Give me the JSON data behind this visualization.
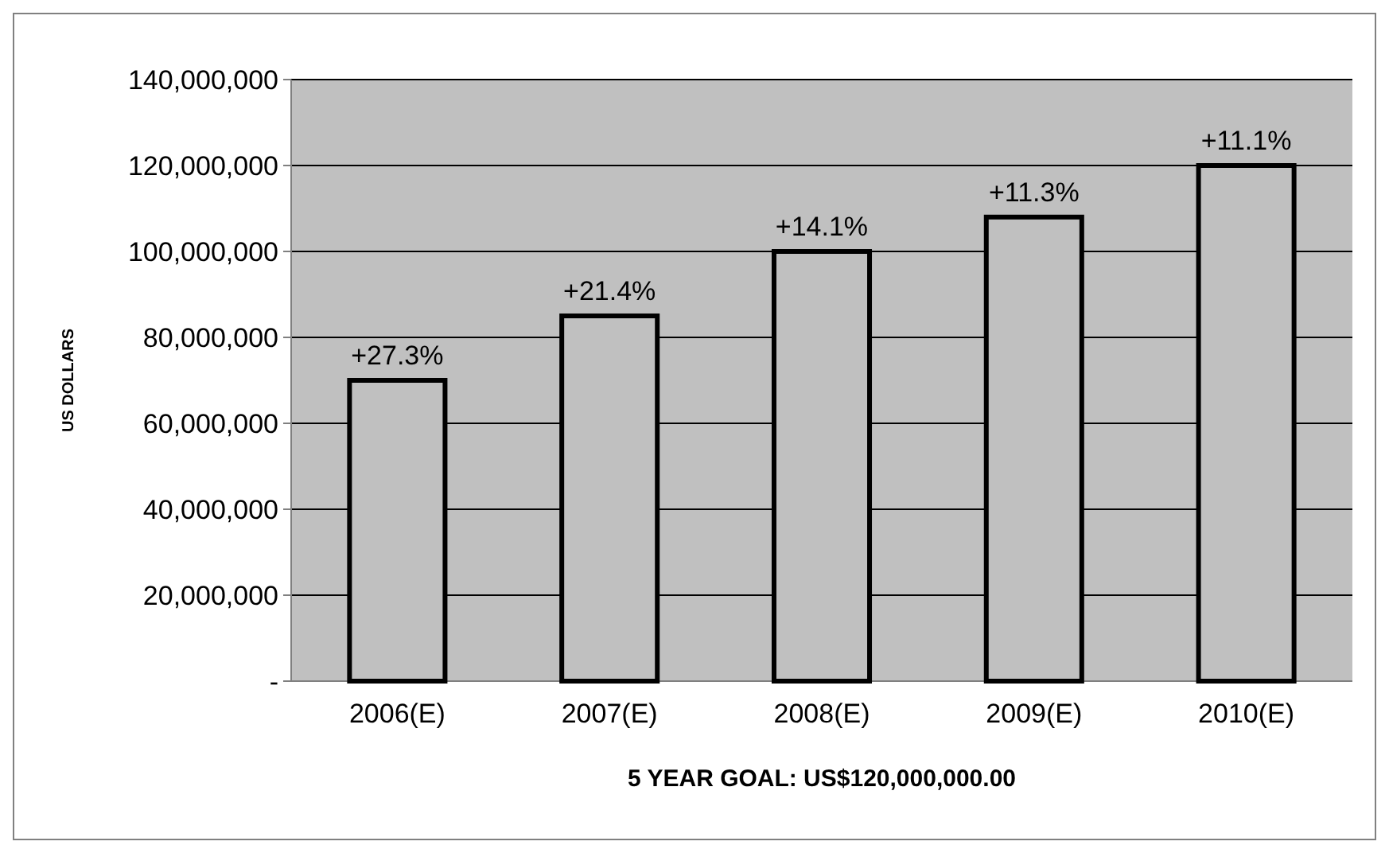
{
  "chart_data": {
    "type": "bar",
    "xlabel": "5 YEAR GOAL: US$120,000,000.00",
    "ylabel": "US DOLLARS",
    "categories": [
      "2006(E)",
      "2007(E)",
      "2008(E)",
      "2009(E)",
      "2010(E)"
    ],
    "values": [
      70000000,
      85000000,
      100000000,
      108000000,
      120000000
    ],
    "annotations": [
      {
        "text": "+27.3%",
        "x": "2006(E)",
        "y": 70000000
      },
      {
        "text": "+21.4%",
        "x": "2007(E)",
        "y": 85000000
      },
      {
        "text": "+14.1%",
        "x": "2008(E)",
        "y": 100000000
      },
      {
        "text": "+11.3%",
        "x": "2009(E)",
        "y": 108000000
      },
      {
        "text": "+11.1%",
        "x": "2010(E)",
        "y": 120000000
      }
    ],
    "color": "#c0c0c0",
    "ylim": [
      0,
      140000000
    ],
    "yticks": [
      {
        "value": 0,
        "label": "-"
      },
      {
        "value": 20000000,
        "label": "20,000,000"
      },
      {
        "value": 40000000,
        "label": "40,000,000"
      },
      {
        "value": 60000000,
        "label": "60,000,000"
      },
      {
        "value": 80000000,
        "label": "80,000,000"
      },
      {
        "value": 100000000,
        "label": "100,000,000"
      },
      {
        "value": 120000000,
        "label": "120,000,000"
      },
      {
        "value": 140000000,
        "label": "140,000,000"
      }
    ],
    "grid": "y"
  }
}
